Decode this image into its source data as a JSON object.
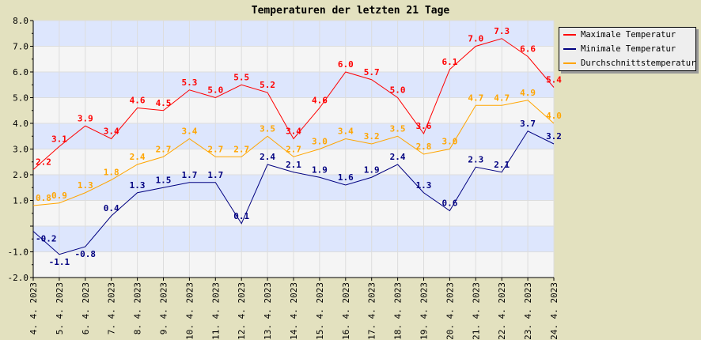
{
  "chart_data": {
    "type": "line",
    "title": "Temperaturen der letzten 21 Tage",
    "categories": [
      "4. 4. 2023",
      "5. 4. 2023",
      "6. 4. 2023",
      "7. 4. 2023",
      "8. 4. 2023",
      "9. 4. 2023",
      "10. 4. 2023",
      "11. 4. 2023",
      "12. 4. 2023",
      "13. 4. 2023",
      "14. 4. 2023",
      "15. 4. 2023",
      "16. 4. 2023",
      "17. 4. 2023",
      "18. 4. 2023",
      "19. 4. 2023",
      "20. 4. 2023",
      "21. 4. 2023",
      "22. 4. 2023",
      "23. 4. 2023",
      "24. 4. 2023"
    ],
    "ylim": [
      -2,
      8
    ],
    "yticks": [
      "8.0",
      "7.0",
      "6.0",
      "5.0",
      "4.0",
      "3.0",
      "2.0",
      "1.0",
      "",
      "-1.0",
      "-2.0"
    ],
    "grid": true,
    "legend_position": "top-right",
    "series": [
      {
        "name": "Maximale Temperatur",
        "color": "#ff0000",
        "values": [
          2.2,
          3.1,
          3.9,
          3.4,
          4.6,
          4.5,
          5.3,
          5.0,
          5.5,
          5.2,
          3.4,
          4.6,
          6.0,
          5.7,
          5.0,
          3.6,
          6.1,
          7.0,
          7.3,
          6.6,
          5.4
        ]
      },
      {
        "name": "Minimale Temperatur",
        "color": "#000080",
        "values": [
          -0.2,
          -1.1,
          -0.8,
          0.4,
          1.3,
          1.5,
          1.7,
          1.7,
          0.1,
          2.4,
          2.1,
          1.9,
          1.6,
          1.9,
          2.4,
          1.3,
          0.6,
          2.3,
          2.1,
          3.7,
          3.2
        ]
      },
      {
        "name": "Durchschnittstemperatur",
        "color": "#ffa500",
        "values": [
          0.8,
          0.9,
          1.3,
          1.8,
          2.4,
          2.7,
          3.4,
          2.7,
          2.7,
          3.5,
          2.7,
          3.0,
          3.4,
          3.2,
          3.5,
          2.8,
          3.0,
          4.7,
          4.7,
          4.9,
          4.0
        ]
      }
    ],
    "band_colors": [
      "#dde6fd",
      "#f5f5f5"
    ]
  }
}
